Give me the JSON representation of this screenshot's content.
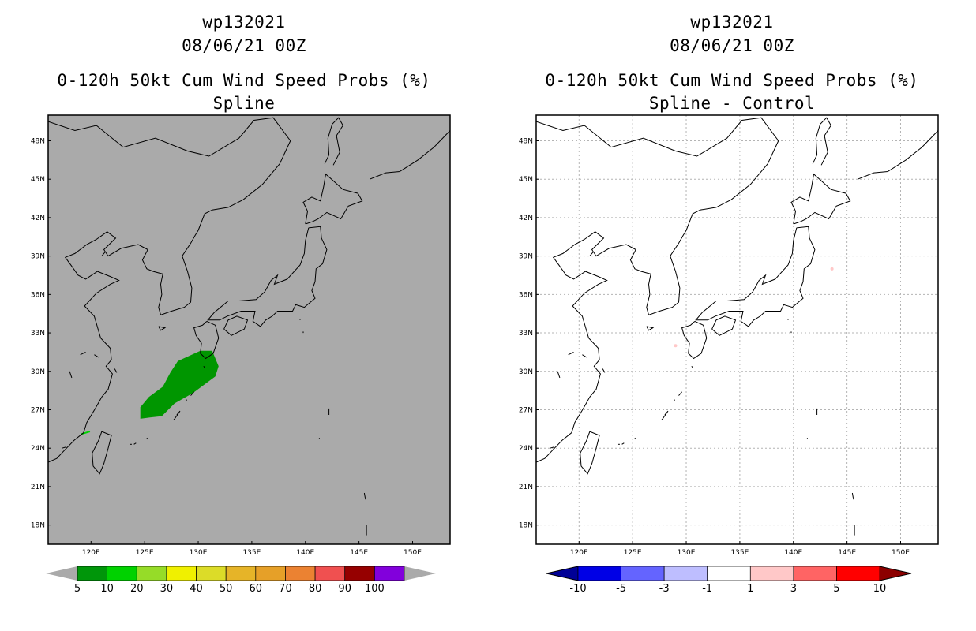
{
  "panels": [
    {
      "storm_id": "wp132021",
      "datetime": "08/06/21 00Z",
      "title": "0-120h 50kt Cum Wind Speed Probs (%)",
      "subtitle": "Spline",
      "background": "#aaaaaa",
      "gridlines": false,
      "colorbar": {
        "labels": [
          "5",
          "10",
          "20",
          "30",
          "40",
          "50",
          "60",
          "70",
          "80",
          "90",
          "100"
        ],
        "colors": [
          "#00960a",
          "#00d200",
          "#96dc28",
          "#f0f000",
          "#dcdc28",
          "#e6b428",
          "#e6a028",
          "#eb8232",
          "#f05050",
          "#960000",
          "#8200dc"
        ],
        "end_colors": [
          "#aaaaaa",
          "#aaaaaa"
        ]
      },
      "field": {
        "color": "#009600",
        "description": ""
      }
    },
    {
      "storm_id": "wp132021",
      "datetime": "08/06/21 00Z",
      "title": "0-120h 50kt Cum Wind Speed Probs (%)",
      "subtitle": "Spline - Control",
      "background": "#ffffff",
      "gridlines": true,
      "colorbar": {
        "labels": [
          "-10",
          "-5",
          "-3",
          "-1",
          "1",
          "3",
          "5",
          "10"
        ],
        "colors": [
          "#0000e6",
          "#6464ff",
          "#bebeff",
          "#ffffff",
          "#ffc8c8",
          "#ff6464",
          "#ff0000"
        ],
        "end_colors": [
          "#000096",
          "#8c0000"
        ]
      }
    }
  ],
  "map": {
    "lon_ticks": [
      "120E",
      "125E",
      "130E",
      "135E",
      "140E",
      "145E",
      "150E"
    ],
    "lat_ticks": [
      "48N",
      "45N",
      "42N",
      "39N",
      "36N",
      "33N",
      "30N",
      "27N",
      "24N",
      "21N",
      "18N"
    ]
  }
}
